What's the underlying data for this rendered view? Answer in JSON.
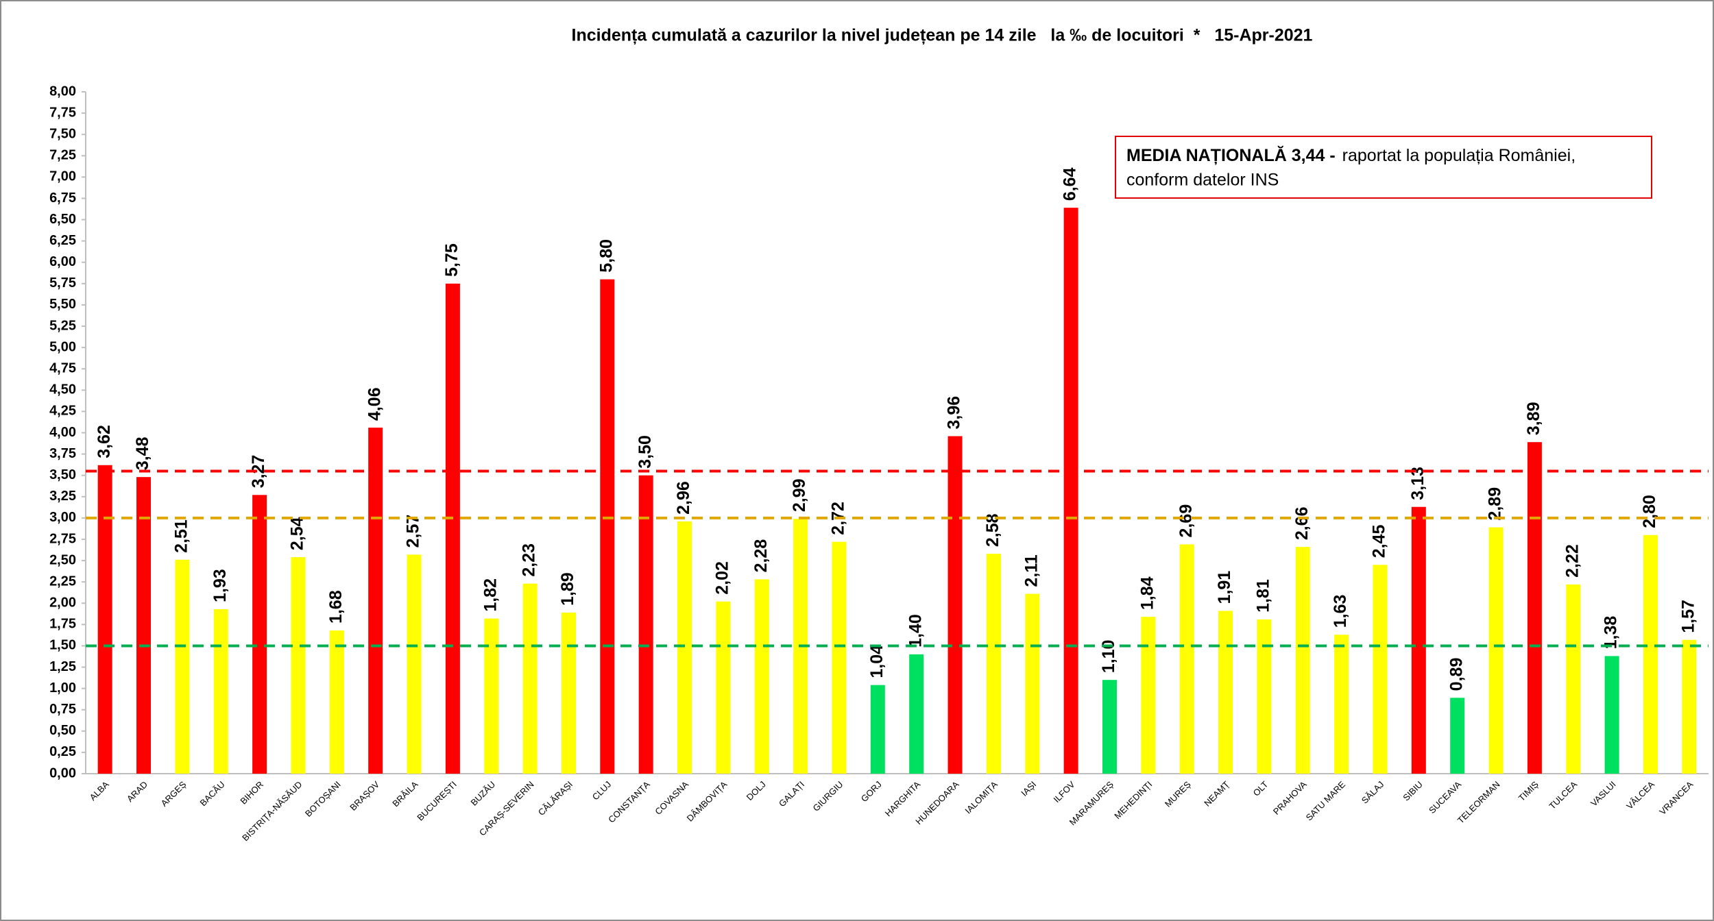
{
  "chart_data": {
    "type": "bar",
    "title": "Incidența cumulată a cazurilor la nivel județean pe 14 zile   la ‰ de locuitori  *   15-Apr-2021",
    "categories": [
      "ALBA",
      "ARAD",
      "ARGEȘ",
      "BACĂU",
      "BIHOR",
      "BISTRIȚA-NĂSĂUD",
      "BOTOȘANI",
      "BRAȘOV",
      "BRĂILA",
      "BUCUREȘTI",
      "BUZĂU",
      "CARAȘ-SEVERIN",
      "CĂLĂRAȘI",
      "CLUJ",
      "CONSTANȚA",
      "COVASNA",
      "DÂMBOVIȚA",
      "DOLJ",
      "GALAȚI",
      "GIURGIU",
      "GORJ",
      "HARGHITA",
      "HUNEDOARA",
      "IALOMIȚA",
      "IAȘI",
      "ILFOV",
      "MARAMUREȘ",
      "MEHEDINȚI",
      "MUREȘ",
      "NEAMȚ",
      "OLT",
      "PRAHOVA",
      "SATU MARE",
      "SĂLAJ",
      "SIBIU",
      "SUCEAVA",
      "TELEORMAN",
      "TIMIȘ",
      "TULCEA",
      "VASLUI",
      "VÂLCEA",
      "VRANCEA"
    ],
    "values": [
      3.62,
      3.48,
      2.51,
      1.93,
      3.27,
      2.54,
      1.68,
      4.06,
      2.57,
      5.75,
      1.82,
      2.23,
      1.89,
      5.8,
      3.5,
      2.96,
      2.02,
      2.28,
      2.99,
      2.72,
      1.04,
      1.4,
      3.96,
      2.58,
      2.11,
      6.64,
      1.1,
      1.84,
      2.69,
      1.91,
      1.81,
      2.66,
      1.63,
      2.45,
      3.13,
      0.89,
      2.89,
      3.89,
      2.22,
      1.38,
      2.8,
      1.57
    ],
    "value_labels": [
      "3,62",
      "3,48",
      "2,51",
      "1,93",
      "3,27",
      "2,54",
      "1,68",
      "4,06",
      "2,57",
      "5,75",
      "1,82",
      "2,23",
      "1,89",
      "5,80",
      "3,50",
      "2,96",
      "2,02",
      "2,28",
      "2,99",
      "2,72",
      "1,04",
      "1,40",
      "3,96",
      "2,58",
      "2,11",
      "6,64",
      "1,10",
      "1,84",
      "2,69",
      "1,91",
      "1,81",
      "2,66",
      "1,63",
      "2,45",
      "3,13",
      "0,89",
      "2,89",
      "3,89",
      "2,22",
      "1,38",
      "2,80",
      "1,57"
    ],
    "colors": [
      "#ff0000",
      "#ff0000",
      "#ffff00",
      "#ffff00",
      "#ff0000",
      "#ffff00",
      "#ffff00",
      "#ff0000",
      "#ffff00",
      "#ff0000",
      "#ffff00",
      "#ffff00",
      "#ffff00",
      "#ff0000",
      "#ff0000",
      "#ffff00",
      "#ffff00",
      "#ffff00",
      "#ffff00",
      "#ffff00",
      "#00e060",
      "#00e060",
      "#ff0000",
      "#ffff00",
      "#ffff00",
      "#ff0000",
      "#00e060",
      "#ffff00",
      "#ffff00",
      "#ffff00",
      "#ffff00",
      "#ffff00",
      "#ffff00",
      "#ffff00",
      "#ff0000",
      "#00e060",
      "#ffff00",
      "#ff0000",
      "#ffff00",
      "#00e060",
      "#ffff00",
      "#ffff00"
    ],
    "ylim": [
      0,
      8
    ],
    "yticks": [
      {
        "value": 0,
        "label": "0,00"
      },
      {
        "value": 0.25,
        "label": "0,25"
      },
      {
        "value": 0.5,
        "label": "0,50"
      },
      {
        "value": 0.75,
        "label": "0,75"
      },
      {
        "value": 1,
        "label": "1,00"
      },
      {
        "value": 1.25,
        "label": "1,25"
      },
      {
        "value": 1.5,
        "label": "1,50"
      },
      {
        "value": 1.75,
        "label": "1,75"
      },
      {
        "value": 2,
        "label": "2,00"
      },
      {
        "value": 2.25,
        "label": "2,25"
      },
      {
        "value": 2.5,
        "label": "2,50"
      },
      {
        "value": 2.75,
        "label": "2,75"
      },
      {
        "value": 3,
        "label": "3,00"
      },
      {
        "value": 3.25,
        "label": "3,25"
      },
      {
        "value": 3.5,
        "label": "3,50"
      },
      {
        "value": 3.75,
        "label": "3,75"
      },
      {
        "value": 4,
        "label": "4,00"
      },
      {
        "value": 4.25,
        "label": "4,25"
      },
      {
        "value": 4.5,
        "label": "4,50"
      },
      {
        "value": 4.75,
        "label": "4,75"
      },
      {
        "value": 5,
        "label": "5,00"
      },
      {
        "value": 5.25,
        "label": "5,25"
      },
      {
        "value": 5.5,
        "label": "5,50"
      },
      {
        "value": 5.75,
        "label": "5,75"
      },
      {
        "value": 6,
        "label": "6,00"
      },
      {
        "value": 6.25,
        "label": "6,25"
      },
      {
        "value": 6.5,
        "label": "6,50"
      },
      {
        "value": 6.75,
        "label": "6,75"
      },
      {
        "value": 7,
        "label": "7,00"
      },
      {
        "value": 7.25,
        "label": "7,25"
      },
      {
        "value": 7.5,
        "label": "7,50"
      },
      {
        "value": 7.75,
        "label": "7,75"
      },
      {
        "value": 8,
        "label": "8,00"
      }
    ],
    "grid": false,
    "reference_lines": [
      {
        "value": 3.55,
        "color": "#ff0000"
      },
      {
        "value": 3.0,
        "color": "#e0a800"
      },
      {
        "value": 1.5,
        "color": "#00b050"
      }
    ],
    "annotation": {
      "bold": "MEDIA NAȚIONALĂ 3,44 -",
      "lines": [
        "raportat la populația României,",
        "conform datelor INS"
      ]
    }
  }
}
